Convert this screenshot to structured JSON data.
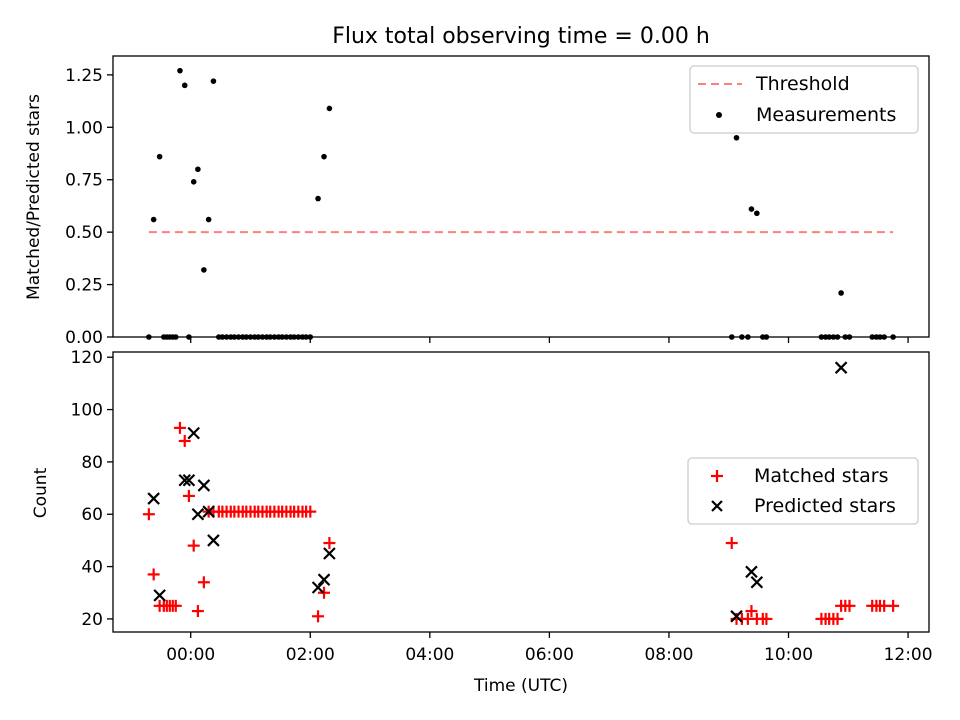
{
  "figure": {
    "title": "Flux total observing time = 0.00 h",
    "xlabel": "Time (UTC)",
    "xticks": [
      {
        "hours": 0,
        "label": "00:00"
      },
      {
        "hours": 2,
        "label": "02:00"
      },
      {
        "hours": 4,
        "label": "04:00"
      },
      {
        "hours": 6,
        "label": "06:00"
      },
      {
        "hours": 8,
        "label": "08:00"
      },
      {
        "hours": 10,
        "label": "10:00"
      },
      {
        "hours": 12,
        "label": "12:00"
      }
    ],
    "xlim_hours": [
      -1.3,
      12.35
    ]
  },
  "chart_data": [
    {
      "type": "scatter",
      "panel": "top",
      "ylabel": "Matched/Predicted stars",
      "ylim": [
        0,
        1.34
      ],
      "yticks": [
        {
          "value": 0.0,
          "label": "0.00"
        },
        {
          "value": 0.25,
          "label": "0.25"
        },
        {
          "value": 0.5,
          "label": "0.50"
        },
        {
          "value": 0.75,
          "label": "0.75"
        },
        {
          "value": 1.0,
          "label": "1.00"
        },
        {
          "value": 1.25,
          "label": "1.25"
        }
      ],
      "legend_position": "top-right",
      "threshold": {
        "name": "Threshold",
        "value": 0.5,
        "x_range": [
          "-0.7",
          "11.75"
        ],
        "color": "#ff7f7f"
      },
      "series": [
        {
          "name": "Measurements",
          "marker": "dot",
          "color": "#000000",
          "x": [
            "-0.7",
            "-0.62",
            "-0.52",
            "-0.45",
            "-0.4",
            "-0.35",
            "-0.3",
            "-0.25",
            "-0.18",
            "-0.1",
            "-0.03",
            "0.05",
            "0.12",
            "0.22",
            "0.3",
            "0.38",
            "0.47",
            "0.53",
            "0.6",
            "0.67",
            "0.73",
            "0.8",
            "0.87",
            "0.93",
            "1.0",
            "1.07",
            "1.13",
            "1.2",
            "1.27",
            "1.33",
            "1.4",
            "1.47",
            "1.53",
            "1.6",
            "1.67",
            "1.73",
            "1.8",
            "1.87",
            "1.93",
            "2.0",
            "2.13",
            "2.23",
            "2.32",
            "9.05",
            "9.13",
            "9.22",
            "9.32",
            "9.38",
            "9.47",
            "9.57",
            "9.63",
            "10.55",
            "10.62",
            "10.68",
            "10.75",
            "10.82",
            "10.88",
            "10.95",
            "11.02",
            "11.4",
            "11.47",
            "11.53",
            "11.6",
            "11.75"
          ],
          "y": [
            0.0,
            0.56,
            0.86,
            0.0,
            0.0,
            0.0,
            0.0,
            0.0,
            1.27,
            1.2,
            0.0,
            0.74,
            0.8,
            0.32,
            0.56,
            1.22,
            0.0,
            0.0,
            0.0,
            0.0,
            0.0,
            0.0,
            0.0,
            0.0,
            0.0,
            0.0,
            0.0,
            0.0,
            0.0,
            0.0,
            0.0,
            0.0,
            0.0,
            0.0,
            0.0,
            0.0,
            0.0,
            0.0,
            0.0,
            0.0,
            0.66,
            0.86,
            1.09,
            0.0,
            0.95,
            0.0,
            0.0,
            0.61,
            0.59,
            0.0,
            0.0,
            0.0,
            0.0,
            0.0,
            0.0,
            0.0,
            0.21,
            0.0,
            0.0,
            0.0,
            0.0,
            0.0,
            0.0,
            0.0
          ]
        }
      ]
    },
    {
      "type": "scatter",
      "panel": "bottom",
      "ylabel": "Count",
      "ylim": [
        15,
        122
      ],
      "yticks": [
        {
          "value": 20,
          "label": "20"
        },
        {
          "value": 40,
          "label": "40"
        },
        {
          "value": 60,
          "label": "60"
        },
        {
          "value": 80,
          "label": "80"
        },
        {
          "value": 100,
          "label": "100"
        },
        {
          "value": 120,
          "label": "120"
        }
      ],
      "legend_position": "center-right",
      "series": [
        {
          "name": "Matched stars",
          "marker": "plus",
          "color": "#ff0000",
          "x": [
            "-0.7",
            "-0.62",
            "-0.52",
            "-0.45",
            "-0.4",
            "-0.35",
            "-0.3",
            "-0.25",
            "-0.18",
            "-0.1",
            "-0.03",
            "0.05",
            "0.12",
            "0.22",
            "0.3",
            "0.38",
            "0.47",
            "0.53",
            "0.6",
            "0.67",
            "0.73",
            "0.8",
            "0.87",
            "0.93",
            "1.0",
            "1.07",
            "1.13",
            "1.2",
            "1.27",
            "1.33",
            "1.4",
            "1.47",
            "1.53",
            "1.6",
            "1.67",
            "1.73",
            "1.8",
            "1.87",
            "1.93",
            "2.0",
            "2.13",
            "2.23",
            "2.32",
            "9.05",
            "9.13",
            "9.22",
            "9.32",
            "9.38",
            "9.47",
            "9.57",
            "9.63",
            "10.55",
            "10.62",
            "10.68",
            "10.75",
            "10.82",
            "10.88",
            "10.95",
            "11.02",
            "11.4",
            "11.47",
            "11.53",
            "11.6",
            "11.75"
          ],
          "y": [
            60,
            37,
            25,
            25,
            25,
            25,
            25,
            25,
            93,
            88,
            67,
            48,
            23,
            34,
            61,
            61,
            61,
            61,
            61,
            61,
            61,
            61,
            61,
            61,
            61,
            61,
            61,
            61,
            61,
            61,
            61,
            61,
            61,
            61,
            61,
            61,
            61,
            61,
            61,
            61,
            21,
            30,
            49,
            49,
            20,
            20,
            20,
            23,
            20,
            20,
            20,
            20,
            20,
            20,
            20,
            20,
            25,
            25,
            25,
            25,
            25,
            25,
            25,
            25
          ]
        },
        {
          "name": "Predicted stars",
          "marker": "x",
          "color": "#000000",
          "x": [
            "-0.62",
            "-0.52",
            "-0.1",
            "-0.03",
            "0.05",
            "0.12",
            "0.22",
            "0.3",
            "0.38",
            "2.13",
            "2.23",
            "2.32",
            "9.13",
            "9.38",
            "9.47",
            "10.88"
          ],
          "y": [
            66,
            29,
            73,
            73,
            91,
            60,
            71,
            61,
            50,
            32,
            35,
            45,
            21,
            38,
            34,
            116
          ]
        }
      ]
    }
  ]
}
